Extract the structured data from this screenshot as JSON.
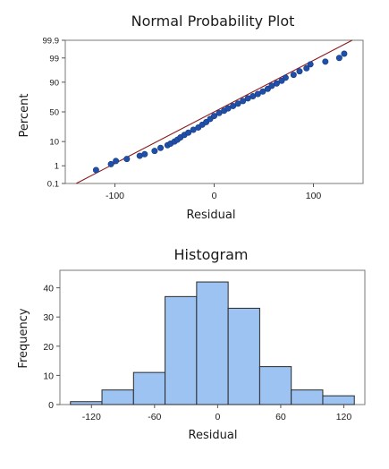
{
  "chart_data": [
    {
      "type": "scatter",
      "title": "Normal Probability Plot",
      "xlabel": "Residual",
      "ylabel": "Percent",
      "x_ticks": [
        -100,
        0,
        100
      ],
      "y_ticks": [
        0.1,
        1,
        10,
        50,
        90,
        99,
        99.9
      ],
      "y_tick_labels": [
        "0.1",
        "1",
        "10",
        "50",
        "90",
        "99",
        "99.9"
      ],
      "y_scale": "normal-probability",
      "xlim": [
        -150,
        150
      ],
      "ylim": [
        0.1,
        99.9
      ],
      "fit_line": {
        "points": [
          [
            -139,
            0.1
          ],
          [
            139,
            99.9
          ]
        ],
        "color": "#8b1a1a"
      },
      "point_color": "#1f4fa8",
      "points": [
        [
          -119,
          0.6
        ],
        [
          -104,
          1.2
        ],
        [
          -99,
          1.7
        ],
        [
          -88,
          2.1
        ],
        [
          -75,
          2.9
        ],
        [
          -70,
          3.4
        ],
        [
          -60,
          4.6
        ],
        [
          -54,
          6.0
        ],
        [
          -47,
          7.5
        ],
        [
          -44,
          8.5
        ],
        [
          -40,
          10.0
        ],
        [
          -37,
          11.5
        ],
        [
          -34,
          13.5
        ],
        [
          -30,
          16.0
        ],
        [
          -26,
          18.5
        ],
        [
          -21,
          22.0
        ],
        [
          -16,
          25.0
        ],
        [
          -12,
          29.0
        ],
        [
          -8,
          33.0
        ],
        [
          -4,
          38.0
        ],
        [
          0,
          43.0
        ],
        [
          5,
          48.0
        ],
        [
          10,
          52.0
        ],
        [
          14,
          56.0
        ],
        [
          19,
          60.0
        ],
        [
          24,
          64.0
        ],
        [
          29,
          68.0
        ],
        [
          34,
          72.0
        ],
        [
          39,
          75.0
        ],
        [
          44,
          78.0
        ],
        [
          49,
          81.0
        ],
        [
          54,
          84.0
        ],
        [
          58,
          87.0
        ],
        [
          63,
          89.0
        ],
        [
          68,
          91.0
        ],
        [
          72,
          93.0
        ],
        [
          80,
          94.5
        ],
        [
          86,
          96.0
        ],
        [
          93,
          97.0
        ],
        [
          97,
          98.0
        ],
        [
          112,
          98.5
        ],
        [
          126,
          99.0
        ],
        [
          131,
          99.4
        ]
      ]
    },
    {
      "type": "bar",
      "title": "Histogram",
      "xlabel": "Residual",
      "ylabel": "Frequency",
      "bin_edges": [
        -140,
        -110,
        -80,
        -50,
        -20,
        10,
        40,
        70,
        100,
        130
      ],
      "values": [
        1,
        5,
        11,
        37,
        42,
        33,
        13,
        5,
        3
      ],
      "x_ticks": [
        -120,
        -60,
        0,
        60,
        120
      ],
      "y_ticks": [
        0,
        10,
        20,
        30,
        40
      ],
      "xlim": [
        -150,
        140
      ],
      "ylim": [
        0,
        46
      ],
      "bar_color": "#9cc3f2"
    }
  ]
}
